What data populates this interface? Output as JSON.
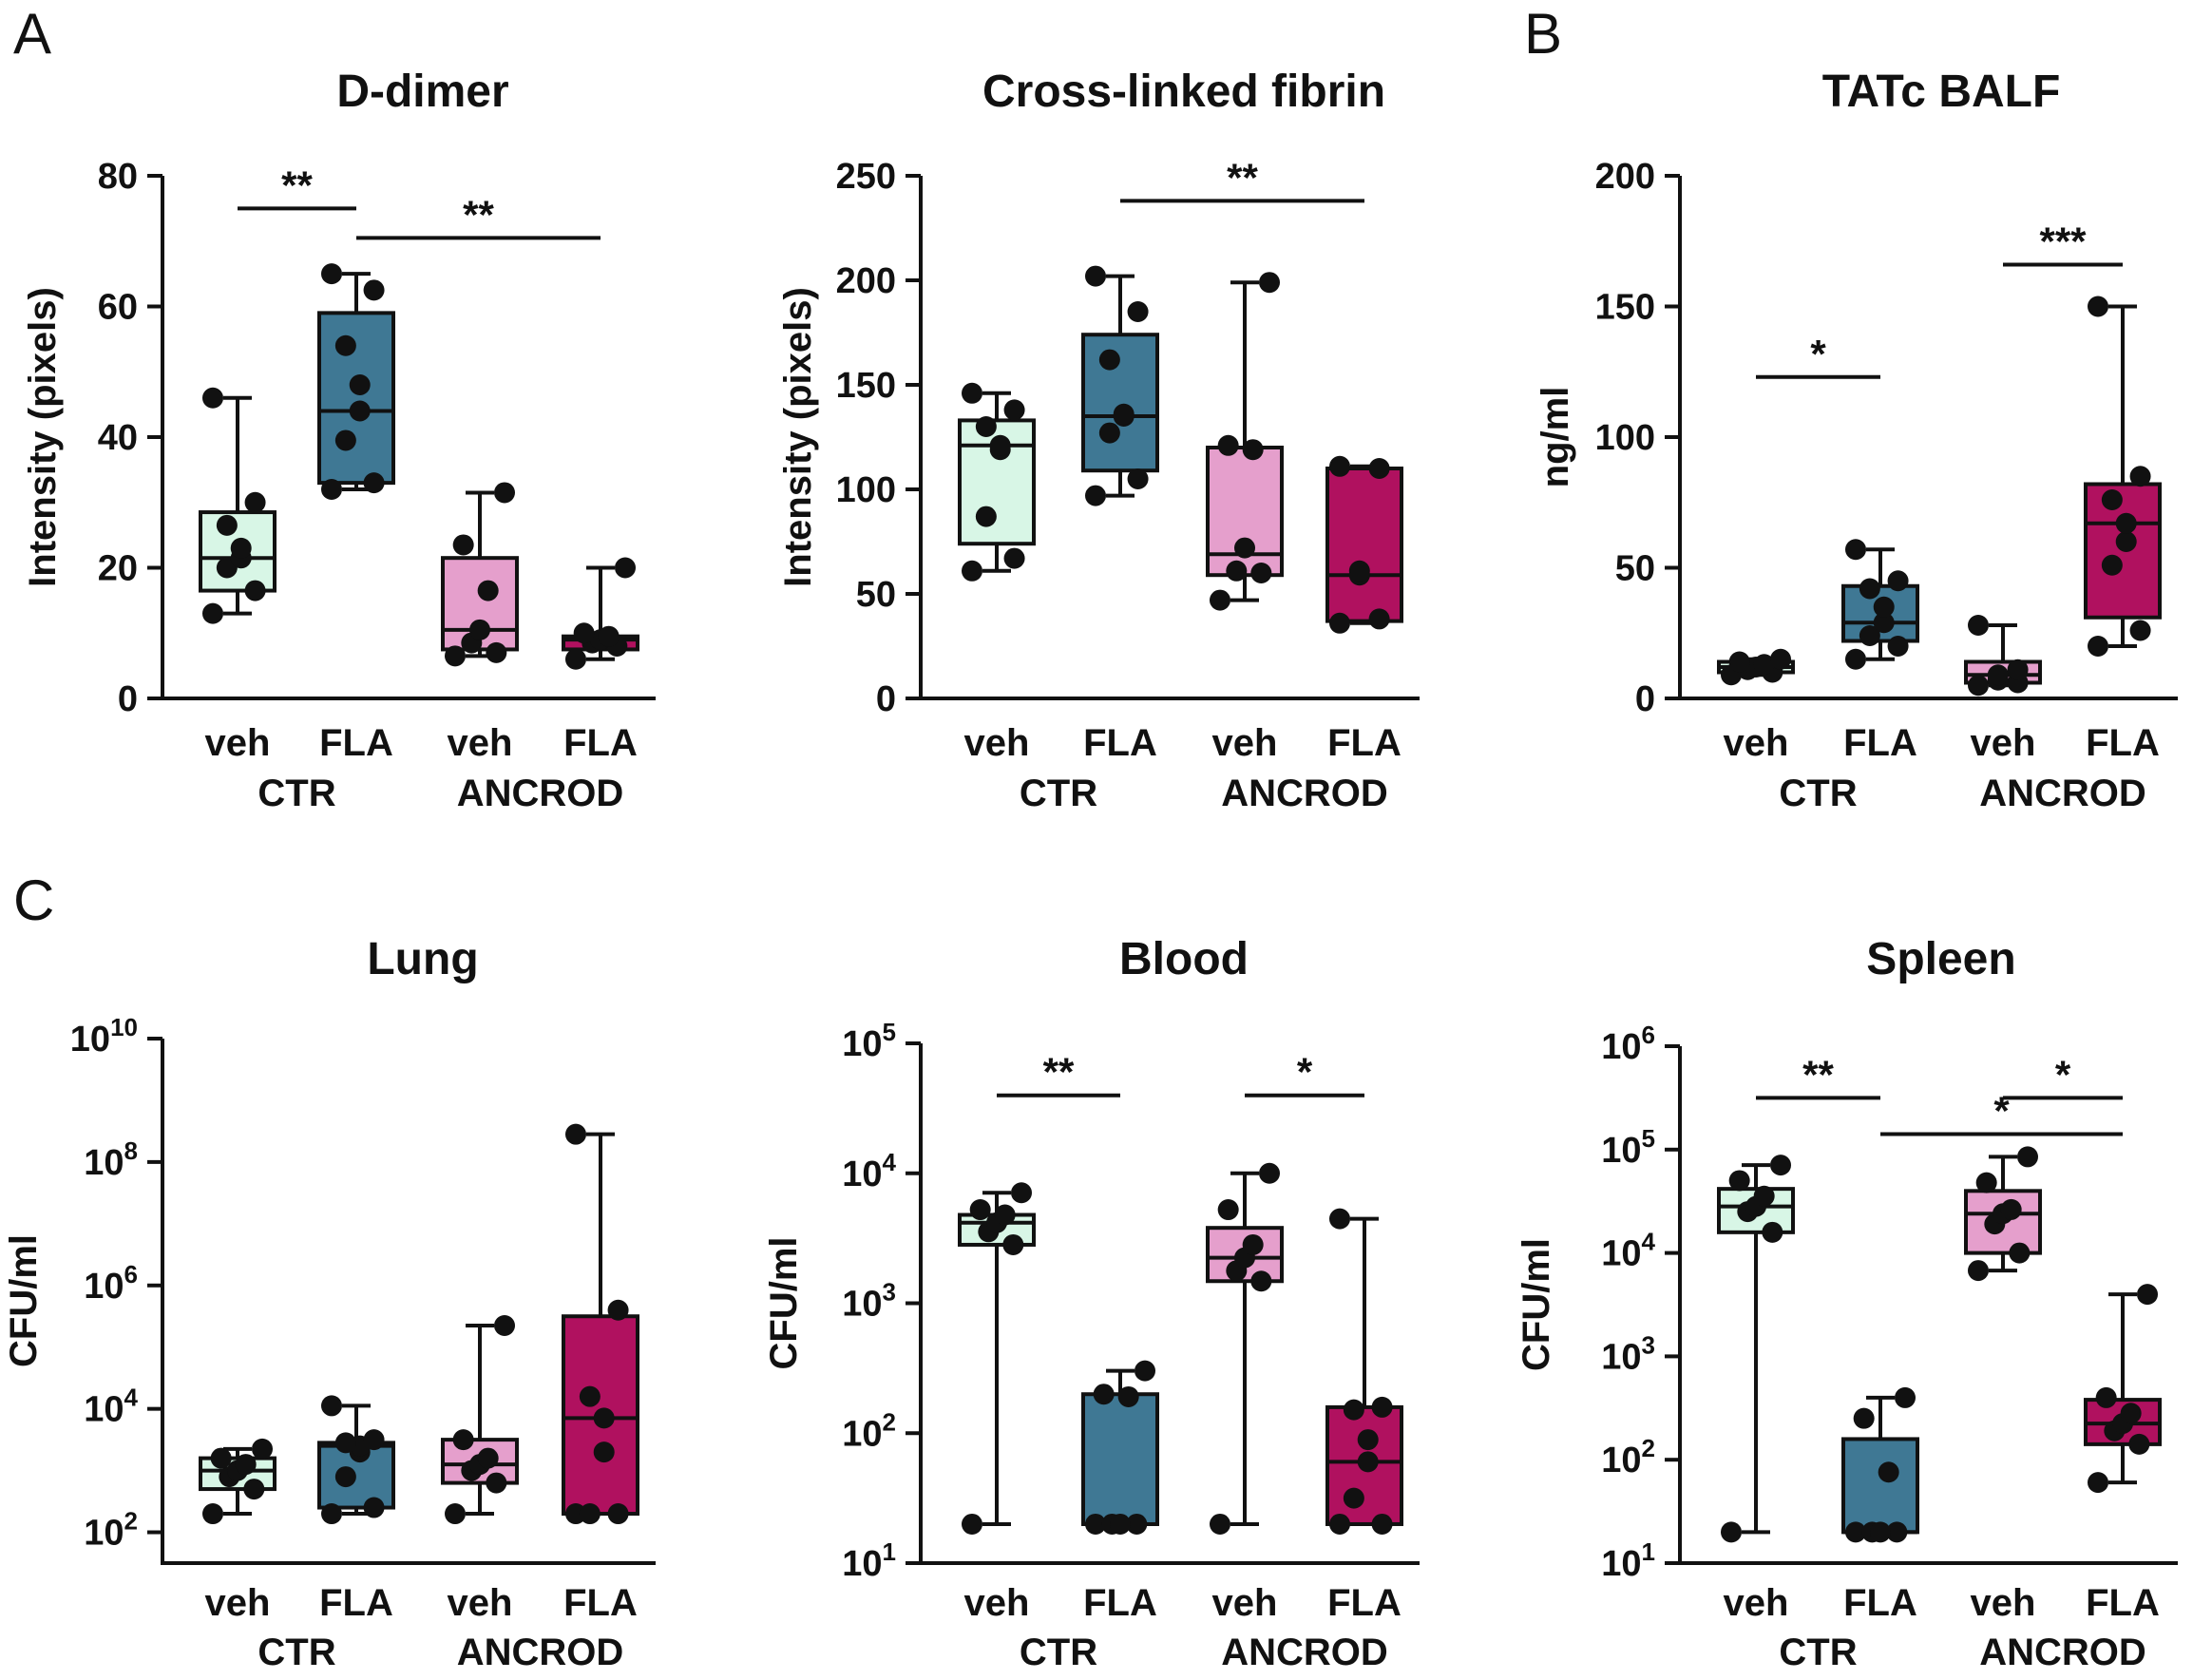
{
  "panel_labels": [
    "A",
    "B",
    "C"
  ],
  "colors": {
    "veh_CTR": "#d8f6e6",
    "FLA_CTR": "#3f7894",
    "veh_ANCROD": "#e59fcc",
    "FLA_ANCROD": "#b0115f",
    "point": "#111111",
    "axis": "#111111"
  },
  "chart_data": [
    {
      "type": "box",
      "title": "D-dimer",
      "ylabel": "Intensity (pixels)",
      "scale": "linear",
      "ylim": [
        0,
        80
      ],
      "yticks": [
        0,
        20,
        40,
        60,
        80
      ],
      "ytick_labels": [
        "0",
        "20",
        "40",
        "60",
        "80"
      ],
      "categories": [
        "veh",
        "FLA",
        "veh",
        "FLA"
      ],
      "groups": [
        "CTR",
        "ANCROD"
      ],
      "series": [
        {
          "name": "veh CTR",
          "min": 13,
          "q1": 16.5,
          "median": 21.5,
          "q3": 28.5,
          "max": 46,
          "points": [
            13,
            16.5,
            20,
            21.5,
            23,
            26.5,
            30,
            46
          ]
        },
        {
          "name": "FLA CTR",
          "min": 32,
          "q1": 33,
          "median": 44,
          "q3": 59,
          "max": 65,
          "points": [
            32,
            33,
            39.5,
            44,
            48,
            54,
            62.5,
            65
          ]
        },
        {
          "name": "veh ANCROD",
          "min": 6.5,
          "q1": 7.5,
          "median": 10.5,
          "q3": 21.5,
          "max": 31.5,
          "points": [
            6.5,
            7,
            8.5,
            10.5,
            16.5,
            23.5,
            31.5
          ]
        },
        {
          "name": "FLA ANCROD",
          "min": 6,
          "q1": 7.5,
          "median": 9,
          "q3": 9.5,
          "max": 20,
          "points": [
            6,
            8,
            8.5,
            9,
            9.5,
            10,
            20
          ]
        }
      ],
      "significance": [
        {
          "label": "**",
          "from": 0,
          "to": 1,
          "y": 75
        },
        {
          "label": "**",
          "from": 1,
          "to": 3,
          "y": 70.5
        }
      ]
    },
    {
      "type": "box",
      "title": "Cross-linked fibrin",
      "ylabel": "Intensity (pixels)",
      "scale": "linear",
      "ylim": [
        0,
        250
      ],
      "yticks": [
        0,
        50,
        100,
        150,
        200,
        250
      ],
      "ytick_labels": [
        "0",
        "50",
        "100",
        "150",
        "200",
        "250"
      ],
      "categories": [
        "veh",
        "FLA",
        "veh",
        "FLA"
      ],
      "groups": [
        "CTR",
        "ANCROD"
      ],
      "series": [
        {
          "name": "veh CTR",
          "min": 61,
          "q1": 74,
          "median": 121,
          "q3": 133,
          "max": 146,
          "points": [
            61,
            67,
            87,
            119,
            121,
            130,
            138,
            146
          ]
        },
        {
          "name": "FLA CTR",
          "min": 97,
          "q1": 109,
          "median": 135,
          "q3": 174,
          "max": 202,
          "points": [
            97,
            105,
            127,
            135,
            136,
            162,
            185,
            202
          ]
        },
        {
          "name": "veh ANCROD",
          "min": 47,
          "q1": 59,
          "median": 69,
          "q3": 120,
          "max": 199,
          "points": [
            47,
            60,
            61,
            72,
            119,
            121,
            199
          ]
        },
        {
          "name": "FLA ANCROD",
          "min": 36,
          "q1": 37,
          "median": 59,
          "q3": 110,
          "max": 111,
          "points": [
            36,
            38,
            59,
            61,
            110,
            111
          ]
        }
      ],
      "significance": [
        {
          "label": "**",
          "from": 1,
          "to": 3,
          "y": 238
        }
      ]
    },
    {
      "type": "box",
      "title": "TATc BALF",
      "ylabel": "ng/ml",
      "scale": "linear",
      "ylim": [
        0,
        200
      ],
      "yticks": [
        0,
        50,
        100,
        150,
        200
      ],
      "ytick_labels": [
        "0",
        "50",
        "100",
        "150",
        "200"
      ],
      "categories": [
        "veh",
        "FLA",
        "veh",
        "FLA"
      ],
      "groups": [
        "CTR",
        "ANCROD"
      ],
      "series": [
        {
          "name": "veh CTR",
          "min": 9,
          "q1": 10,
          "median": 12,
          "q3": 14,
          "max": 15,
          "points": [
            9,
            10,
            11,
            12,
            13,
            14,
            15
          ]
        },
        {
          "name": "FLA CTR",
          "min": 15,
          "q1": 22,
          "median": 29,
          "q3": 43,
          "max": 57,
          "points": [
            15,
            20,
            24,
            29,
            35,
            42,
            45,
            57
          ]
        },
        {
          "name": "veh ANCROD",
          "min": 5,
          "q1": 6,
          "median": 9,
          "q3": 14,
          "max": 28,
          "points": [
            5,
            6,
            7,
            9,
            11,
            28
          ]
        },
        {
          "name": "FLA ANCROD",
          "min": 20,
          "q1": 31,
          "median": 67,
          "q3": 82,
          "max": 150,
          "points": [
            20,
            26,
            51,
            60,
            67,
            76,
            85,
            150
          ]
        }
      ],
      "significance": [
        {
          "label": "*",
          "from": 0,
          "to": 1,
          "y": 123
        },
        {
          "label": "***",
          "from": 2,
          "to": 3,
          "y": 166
        }
      ]
    },
    {
      "type": "box",
      "title": "Lung",
      "ylabel": "CFU/ml",
      "scale": "log",
      "ylim": [
        1.5,
        10
      ],
      "yticks": [
        2,
        4,
        6,
        8,
        10
      ],
      "ytick_base": "10",
      "ytick_exponents": [
        "2",
        "4",
        "6",
        "8",
        "10"
      ],
      "categories": [
        "veh",
        "FLA",
        "veh",
        "FLA"
      ],
      "groups": [
        "CTR",
        "ANCROD"
      ],
      "series": [
        {
          "name": "veh CTR",
          "min": 2.3,
          "q1": 2.7,
          "median": 3.0,
          "q3": 3.2,
          "max": 3.35,
          "points": [
            2.3,
            2.7,
            2.9,
            3.0,
            3.1,
            3.2,
            3.35
          ]
        },
        {
          "name": "FLA CTR",
          "min": 2.3,
          "q1": 2.4,
          "median": 3.4,
          "q3": 3.45,
          "max": 4.05,
          "points": [
            2.3,
            2.4,
            2.9,
            3.3,
            3.4,
            3.45,
            3.5,
            4.05
          ]
        },
        {
          "name": "veh ANCROD",
          "min": 2.3,
          "q1": 2.8,
          "median": 3.1,
          "q3": 3.5,
          "max": 5.35,
          "points": [
            2.3,
            2.8,
            3.0,
            3.1,
            3.2,
            3.5,
            5.35
          ]
        },
        {
          "name": "FLA ANCROD",
          "min": 2.3,
          "q1": 2.3,
          "median": 3.85,
          "q3": 5.5,
          "max": 8.45,
          "points": [
            2.3,
            2.3,
            2.3,
            3.3,
            3.85,
            4.2,
            5.6,
            8.45
          ]
        }
      ],
      "significance": []
    },
    {
      "type": "box",
      "title": "Blood",
      "ylabel": "CFU/ml",
      "scale": "log",
      "ylim": [
        1,
        5
      ],
      "yticks": [
        1,
        2,
        3,
        4,
        5
      ],
      "ytick_base": "10",
      "ytick_exponents": [
        "1",
        "2",
        "3",
        "4",
        "5"
      ],
      "categories": [
        "veh",
        "FLA",
        "veh",
        "FLA"
      ],
      "groups": [
        "CTR",
        "ANCROD"
      ],
      "series": [
        {
          "name": "veh CTR",
          "min": 1.3,
          "q1": 3.45,
          "median": 3.62,
          "q3": 3.68,
          "max": 3.85,
          "points": [
            1.3,
            3.45,
            3.55,
            3.62,
            3.68,
            3.72,
            3.85
          ]
        },
        {
          "name": "FLA CTR",
          "min": 1.3,
          "q1": 1.3,
          "median": 1.3,
          "q3": 2.3,
          "max": 2.48,
          "points": [
            1.3,
            1.3,
            1.3,
            1.3,
            2.28,
            2.3,
            2.48
          ]
        },
        {
          "name": "veh ANCROD",
          "min": 1.3,
          "q1": 3.17,
          "median": 3.35,
          "q3": 3.58,
          "max": 4.0,
          "points": [
            1.3,
            3.17,
            3.25,
            3.35,
            3.45,
            3.72,
            4.0
          ]
        },
        {
          "name": "FLA ANCROD",
          "min": 1.3,
          "q1": 1.3,
          "median": 1.78,
          "q3": 2.2,
          "max": 3.65,
          "points": [
            1.3,
            1.3,
            1.5,
            1.78,
            1.95,
            2.18,
            2.2,
            3.65
          ]
        }
      ],
      "significance": [
        {
          "label": "**",
          "from": 0,
          "to": 1,
          "y": 4.6
        },
        {
          "label": "*",
          "from": 2,
          "to": 3,
          "y": 4.6
        }
      ]
    },
    {
      "type": "box",
      "title": "Spleen",
      "ylabel": "CFU/ml",
      "scale": "log",
      "ylim": [
        1,
        6
      ],
      "yticks": [
        1,
        2,
        3,
        4,
        5,
        6
      ],
      "ytick_base": "10",
      "ytick_exponents": [
        "1",
        "2",
        "3",
        "4",
        "5",
        "6"
      ],
      "categories": [
        "veh",
        "FLA",
        "veh",
        "FLA"
      ],
      "groups": [
        "CTR",
        "ANCROD"
      ],
      "series": [
        {
          "name": "veh CTR",
          "min": 1.3,
          "q1": 4.2,
          "median": 4.45,
          "q3": 4.62,
          "max": 4.85,
          "points": [
            1.3,
            4.2,
            4.4,
            4.45,
            4.55,
            4.7,
            4.85
          ]
        },
        {
          "name": "FLA CTR",
          "min": 1.3,
          "q1": 1.3,
          "median": 1.3,
          "q3": 2.2,
          "max": 2.6,
          "points": [
            1.3,
            1.3,
            1.3,
            1.3,
            1.88,
            2.4,
            2.6
          ]
        },
        {
          "name": "veh ANCROD",
          "min": 3.83,
          "q1": 4.0,
          "median": 4.38,
          "q3": 4.6,
          "max": 4.93,
          "points": [
            3.83,
            4.0,
            4.28,
            4.38,
            4.42,
            4.68,
            4.93
          ]
        },
        {
          "name": "FLA ANCROD",
          "min": 1.78,
          "q1": 2.15,
          "median": 2.35,
          "q3": 2.58,
          "max": 3.6,
          "points": [
            1.78,
            2.15,
            2.28,
            2.35,
            2.45,
            2.6,
            3.6
          ]
        }
      ],
      "significance": [
        {
          "label": "**",
          "from": 0,
          "to": 1,
          "y": 5.5
        },
        {
          "label": "*",
          "from": 2,
          "to": 3,
          "y": 5.5
        },
        {
          "label": "*",
          "from": 1,
          "to": 3,
          "y": 5.15
        }
      ]
    }
  ]
}
